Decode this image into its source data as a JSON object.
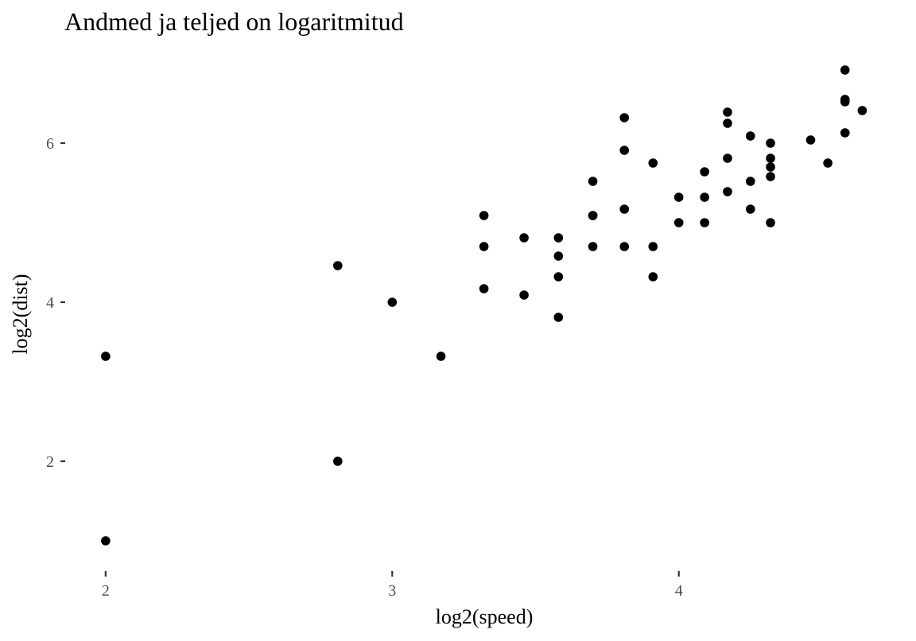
{
  "chart_data": {
    "type": "scatter",
    "title": "Andmed ja teljed on logaritmitud",
    "xlabel": "log2(speed)",
    "ylabel": "log2(dist)",
    "xlim": [
      1.87,
      4.7
    ],
    "ylim": [
      0.68,
      7.2
    ],
    "x_ticks": [
      2,
      3,
      4
    ],
    "y_ticks": [
      2,
      4,
      6
    ],
    "grid": false,
    "legend": "none",
    "point_color": "#000000",
    "points": [
      {
        "x": 2.0,
        "y": 1.0
      },
      {
        "x": 2.0,
        "y": 3.32
      },
      {
        "x": 2.81,
        "y": 2.0
      },
      {
        "x": 2.81,
        "y": 4.46
      },
      {
        "x": 3.0,
        "y": 4.0
      },
      {
        "x": 3.17,
        "y": 3.32
      },
      {
        "x": 3.32,
        "y": 4.17
      },
      {
        "x": 3.32,
        "y": 4.7
      },
      {
        "x": 3.32,
        "y": 5.09
      },
      {
        "x": 3.46,
        "y": 4.09
      },
      {
        "x": 3.46,
        "y": 4.81
      },
      {
        "x": 3.58,
        "y": 3.81
      },
      {
        "x": 3.58,
        "y": 4.32
      },
      {
        "x": 3.58,
        "y": 4.58
      },
      {
        "x": 3.58,
        "y": 4.81
      },
      {
        "x": 3.7,
        "y": 4.7
      },
      {
        "x": 3.7,
        "y": 5.09
      },
      {
        "x": 3.7,
        "y": 5.09
      },
      {
        "x": 3.7,
        "y": 5.52
      },
      {
        "x": 3.81,
        "y": 4.7
      },
      {
        "x": 3.81,
        "y": 5.17
      },
      {
        "x": 3.81,
        "y": 5.91
      },
      {
        "x": 3.81,
        "y": 6.32
      },
      {
        "x": 3.91,
        "y": 4.32
      },
      {
        "x": 3.91,
        "y": 4.7
      },
      {
        "x": 3.91,
        "y": 5.75
      },
      {
        "x": 4.0,
        "y": 5.0
      },
      {
        "x": 4.0,
        "y": 5.32
      },
      {
        "x": 4.09,
        "y": 5.0
      },
      {
        "x": 4.09,
        "y": 5.32
      },
      {
        "x": 4.09,
        "y": 5.64
      },
      {
        "x": 4.17,
        "y": 5.39
      },
      {
        "x": 4.17,
        "y": 5.81
      },
      {
        "x": 4.17,
        "y": 6.25
      },
      {
        "x": 4.17,
        "y": 6.39
      },
      {
        "x": 4.25,
        "y": 5.17
      },
      {
        "x": 4.25,
        "y": 5.52
      },
      {
        "x": 4.25,
        "y": 6.09
      },
      {
        "x": 4.32,
        "y": 5.0
      },
      {
        "x": 4.32,
        "y": 5.58
      },
      {
        "x": 4.32,
        "y": 5.7
      },
      {
        "x": 4.32,
        "y": 5.81
      },
      {
        "x": 4.32,
        "y": 6.0
      },
      {
        "x": 4.46,
        "y": 6.04
      },
      {
        "x": 4.52,
        "y": 5.75
      },
      {
        "x": 4.58,
        "y": 6.13
      },
      {
        "x": 4.58,
        "y": 6.52
      },
      {
        "x": 4.58,
        "y": 6.55
      },
      {
        "x": 4.58,
        "y": 6.92
      },
      {
        "x": 4.64,
        "y": 6.41
      }
    ]
  }
}
